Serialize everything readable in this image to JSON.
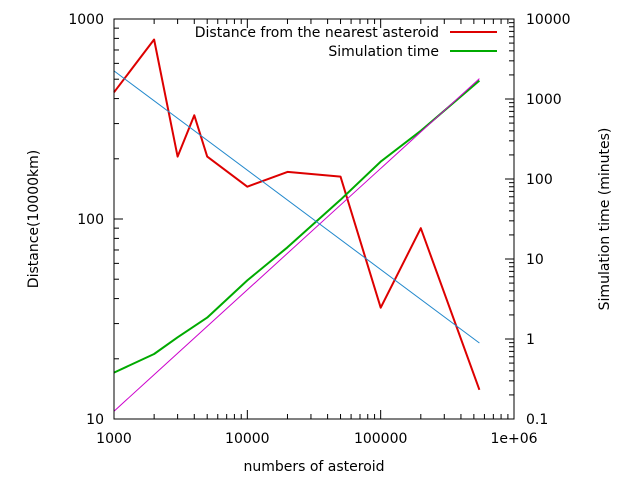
{
  "chart_data": {
    "type": "line",
    "xlabel": "numbers of asteroid",
    "ylabel": "Distance(10000km)",
    "y2label": "Simulation time (minutes)",
    "xscale": "log",
    "yscale": "log",
    "y2scale": "log",
    "xlim": [
      1000,
      1000000
    ],
    "ylim": [
      10,
      1000
    ],
    "y2lim": [
      0.1,
      10000
    ],
    "grid": false,
    "legend_position": "top-right",
    "x_ticks": [
      {
        "value": 1000,
        "label": "1000"
      },
      {
        "value": 10000,
        "label": "10000"
      },
      {
        "value": 100000,
        "label": "100000"
      },
      {
        "value": 1000000,
        "label": "1e+06"
      }
    ],
    "y_ticks": [
      {
        "value": 10,
        "label": "10"
      },
      {
        "value": 100,
        "label": "100"
      },
      {
        "value": 1000,
        "label": "1000"
      }
    ],
    "y2_ticks": [
      {
        "value": 0.1,
        "label": "0.1"
      },
      {
        "value": 1,
        "label": "1"
      },
      {
        "value": 10,
        "label": "10"
      },
      {
        "value": 100,
        "label": "100"
      },
      {
        "value": 1000,
        "label": "1000"
      },
      {
        "value": 10000,
        "label": "10000"
      }
    ],
    "series": [
      {
        "name": "Distance from the nearest asteroid",
        "axis": "y",
        "color": "#dd0000",
        "legend": true,
        "x": [
          1000,
          2000,
          3000,
          4000,
          5000,
          10000,
          20000,
          50000,
          100000,
          200000,
          550000
        ],
        "y": [
          430,
          790,
          205,
          330,
          205,
          145,
          172,
          163,
          36,
          90,
          14
        ]
      },
      {
        "name": "Simulation time",
        "axis": "y2",
        "color": "#00aa00",
        "legend": true,
        "x": [
          1000,
          2000,
          3000,
          5000,
          10000,
          20000,
          50000,
          100000,
          200000,
          550000
        ],
        "y": [
          0.38,
          0.65,
          1.05,
          1.85,
          5.4,
          14,
          55,
          165,
          400,
          1700
        ]
      },
      {
        "axis": "y2",
        "color": "#cc00cc",
        "legend": false,
        "x": [
          1000,
          550000
        ],
        "y": [
          0.125,
          1800
        ]
      },
      {
        "axis": "y",
        "color": "#2288cc",
        "legend": false,
        "x": [
          1000,
          550000
        ],
        "y": [
          550,
          24
        ]
      }
    ]
  }
}
